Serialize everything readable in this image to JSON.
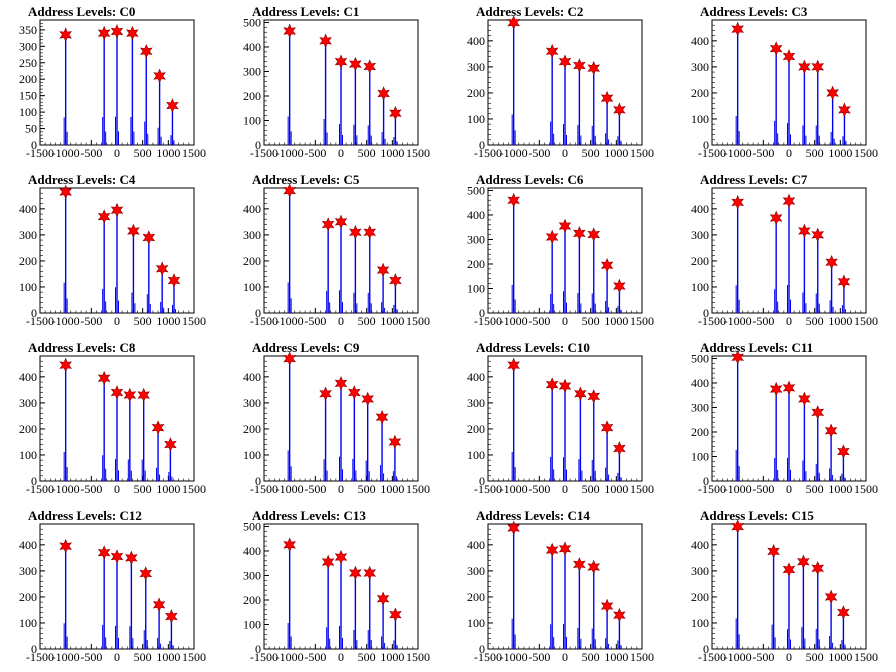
{
  "chart_data": [
    {
      "type": "bar",
      "title": "Address Levels: C0",
      "xlim": [
        -1500,
        1500
      ],
      "ylim": [
        0,
        380
      ],
      "xticks": [
        "-1500",
        "-1000",
        "-500",
        "0",
        "500",
        "1000",
        "1500"
      ],
      "yticks": [
        "0",
        "50",
        "100",
        "150",
        "200",
        "250",
        "300",
        "350"
      ],
      "peaks": [
        {
          "x": -1000,
          "y": 335
        },
        {
          "x": -250,
          "y": 340
        },
        {
          "x": 0,
          "y": 345
        },
        {
          "x": 300,
          "y": 340
        },
        {
          "x": 570,
          "y": 285
        },
        {
          "x": 830,
          "y": 210
        },
        {
          "x": 1080,
          "y": 120
        }
      ]
    },
    {
      "type": "bar",
      "title": "Address Levels: C1",
      "xlim": [
        -1500,
        1500
      ],
      "ylim": [
        0,
        510
      ],
      "xticks": [
        "-1500",
        "-1000",
        "-500",
        "0",
        "500",
        "1000",
        "1500"
      ],
      "yticks": [
        "0",
        "100",
        "200",
        "300",
        "400",
        "500"
      ],
      "peaks": [
        {
          "x": -1000,
          "y": 465
        },
        {
          "x": -300,
          "y": 425
        },
        {
          "x": 0,
          "y": 340
        },
        {
          "x": 280,
          "y": 330
        },
        {
          "x": 560,
          "y": 320
        },
        {
          "x": 830,
          "y": 210
        },
        {
          "x": 1060,
          "y": 130
        }
      ]
    },
    {
      "type": "bar",
      "title": "Address Levels: C2",
      "xlim": [
        -1500,
        1500
      ],
      "ylim": [
        0,
        480
      ],
      "xticks": [
        "-1500",
        "-1000",
        "-500",
        "0",
        "500",
        "1000",
        "1500"
      ],
      "yticks": [
        "0",
        "100",
        "200",
        "300",
        "400"
      ],
      "peaks": [
        {
          "x": -1000,
          "y": 470
        },
        {
          "x": -250,
          "y": 360
        },
        {
          "x": 0,
          "y": 320
        },
        {
          "x": 280,
          "y": 305
        },
        {
          "x": 560,
          "y": 295
        },
        {
          "x": 820,
          "y": 180
        },
        {
          "x": 1060,
          "y": 135
        }
      ]
    },
    {
      "type": "bar",
      "title": "Address Levels: C3",
      "xlim": [
        -1500,
        1500
      ],
      "ylim": [
        0,
        480
      ],
      "xticks": [
        "-1500",
        "-1000",
        "-500",
        "0",
        "500",
        "1000",
        "1500"
      ],
      "yticks": [
        "0",
        "100",
        "200",
        "300",
        "400"
      ],
      "peaks": [
        {
          "x": -1000,
          "y": 445
        },
        {
          "x": -250,
          "y": 370
        },
        {
          "x": 0,
          "y": 340
        },
        {
          "x": 300,
          "y": 300
        },
        {
          "x": 560,
          "y": 300
        },
        {
          "x": 850,
          "y": 200
        },
        {
          "x": 1080,
          "y": 135
        }
      ]
    },
    {
      "type": "bar",
      "title": "Address Levels: C4",
      "xlim": [
        -1500,
        1500
      ],
      "ylim": [
        0,
        480
      ],
      "xticks": [
        "-1500",
        "-1000",
        "-500",
        "0",
        "500",
        "1000",
        "1500"
      ],
      "yticks": [
        "0",
        "100",
        "200",
        "300",
        "400"
      ],
      "peaks": [
        {
          "x": -1000,
          "y": 465
        },
        {
          "x": -250,
          "y": 370
        },
        {
          "x": 0,
          "y": 395
        },
        {
          "x": 320,
          "y": 315
        },
        {
          "x": 620,
          "y": 290
        },
        {
          "x": 880,
          "y": 170
        },
        {
          "x": 1110,
          "y": 125
        }
      ]
    },
    {
      "type": "bar",
      "title": "Address Levels: C5",
      "xlim": [
        -1500,
        1500
      ],
      "ylim": [
        0,
        480
      ],
      "xticks": [
        "-1500",
        "-1000",
        "-500",
        "0",
        "500",
        "1000",
        "1500"
      ],
      "yticks": [
        "0",
        "100",
        "200",
        "300",
        "400"
      ],
      "peaks": [
        {
          "x": -1000,
          "y": 470
        },
        {
          "x": -250,
          "y": 340
        },
        {
          "x": 0,
          "y": 350
        },
        {
          "x": 280,
          "y": 310
        },
        {
          "x": 560,
          "y": 310
        },
        {
          "x": 820,
          "y": 165
        },
        {
          "x": 1060,
          "y": 125
        }
      ]
    },
    {
      "type": "bar",
      "title": "Address Levels: C6",
      "xlim": [
        -1500,
        1500
      ],
      "ylim": [
        0,
        510
      ],
      "xticks": [
        "-1500",
        "-1000",
        "-500",
        "0",
        "500",
        "1000",
        "1500"
      ],
      "yticks": [
        "0",
        "100",
        "200",
        "300",
        "400",
        "500"
      ],
      "peaks": [
        {
          "x": -1000,
          "y": 460
        },
        {
          "x": -250,
          "y": 310
        },
        {
          "x": 0,
          "y": 355
        },
        {
          "x": 280,
          "y": 325
        },
        {
          "x": 560,
          "y": 320
        },
        {
          "x": 820,
          "y": 195
        },
        {
          "x": 1060,
          "y": 110
        }
      ]
    },
    {
      "type": "bar",
      "title": "Address Levels: C7",
      "xlim": [
        -1500,
        1500
      ],
      "ylim": [
        0,
        480
      ],
      "xticks": [
        "-1500",
        "-1000",
        "-500",
        "0",
        "500",
        "1000",
        "1500"
      ],
      "yticks": [
        "0",
        "100",
        "200",
        "300",
        "400"
      ],
      "peaks": [
        {
          "x": -1000,
          "y": 425
        },
        {
          "x": -250,
          "y": 365
        },
        {
          "x": 0,
          "y": 430
        },
        {
          "x": 300,
          "y": 315
        },
        {
          "x": 560,
          "y": 300
        },
        {
          "x": 830,
          "y": 195
        },
        {
          "x": 1070,
          "y": 120
        }
      ]
    },
    {
      "type": "bar",
      "title": "Address Levels: C8",
      "xlim": [
        -1500,
        1500
      ],
      "ylim": [
        0,
        480
      ],
      "xticks": [
        "-1500",
        "-1000",
        "-500",
        "0",
        "500",
        "1000",
        "1500"
      ],
      "yticks": [
        "0",
        "100",
        "200",
        "300",
        "400"
      ],
      "peaks": [
        {
          "x": -1000,
          "y": 445
        },
        {
          "x": -250,
          "y": 395
        },
        {
          "x": 0,
          "y": 340
        },
        {
          "x": 250,
          "y": 330
        },
        {
          "x": 520,
          "y": 330
        },
        {
          "x": 800,
          "y": 205
        },
        {
          "x": 1040,
          "y": 140
        }
      ]
    },
    {
      "type": "bar",
      "title": "Address Levels: C9",
      "xlim": [
        -1500,
        1500
      ],
      "ylim": [
        0,
        480
      ],
      "xticks": [
        "-1500",
        "-1000",
        "-500",
        "0",
        "500",
        "1000",
        "1500"
      ],
      "yticks": [
        "0",
        "100",
        "200",
        "300",
        "400"
      ],
      "peaks": [
        {
          "x": -1000,
          "y": 470
        },
        {
          "x": -300,
          "y": 335
        },
        {
          "x": 0,
          "y": 375
        },
        {
          "x": 260,
          "y": 340
        },
        {
          "x": 520,
          "y": 315
        },
        {
          "x": 800,
          "y": 245
        },
        {
          "x": 1050,
          "y": 150
        }
      ]
    },
    {
      "type": "bar",
      "title": "Address Levels: C10",
      "xlim": [
        -1500,
        1500
      ],
      "ylim": [
        0,
        480
      ],
      "xticks": [
        "-1500",
        "-1000",
        "-500",
        "0",
        "500",
        "1000",
        "1500"
      ],
      "yticks": [
        "0",
        "100",
        "200",
        "300",
        "400"
      ],
      "peaks": [
        {
          "x": -1000,
          "y": 445
        },
        {
          "x": -250,
          "y": 370
        },
        {
          "x": 0,
          "y": 365
        },
        {
          "x": 300,
          "y": 335
        },
        {
          "x": 560,
          "y": 325
        },
        {
          "x": 820,
          "y": 205
        },
        {
          "x": 1060,
          "y": 125
        }
      ]
    },
    {
      "type": "bar",
      "title": "Address Levels: C11",
      "xlim": [
        -1500,
        1500
      ],
      "ylim": [
        0,
        510
      ],
      "xticks": [
        "-1500",
        "-1000",
        "-500",
        "0",
        "500",
        "1000",
        "1500"
      ],
      "yticks": [
        "0",
        "100",
        "200",
        "300",
        "400",
        "500"
      ],
      "peaks": [
        {
          "x": -1000,
          "y": 505
        },
        {
          "x": -250,
          "y": 375
        },
        {
          "x": 0,
          "y": 380
        },
        {
          "x": 300,
          "y": 335
        },
        {
          "x": 560,
          "y": 280
        },
        {
          "x": 820,
          "y": 205
        },
        {
          "x": 1060,
          "y": 120
        }
      ]
    },
    {
      "type": "bar",
      "title": "Address Levels: C12",
      "xlim": [
        -1500,
        1500
      ],
      "ylim": [
        0,
        480
      ],
      "xticks": [
        "-1500",
        "-1000",
        "-500",
        "0",
        "500",
        "1000",
        "1500"
      ],
      "yticks": [
        "0",
        "100",
        "200",
        "300",
        "400"
      ],
      "peaks": [
        {
          "x": -1000,
          "y": 395
        },
        {
          "x": -250,
          "y": 370
        },
        {
          "x": 0,
          "y": 355
        },
        {
          "x": 280,
          "y": 350
        },
        {
          "x": 560,
          "y": 290
        },
        {
          "x": 820,
          "y": 170
        },
        {
          "x": 1060,
          "y": 125
        }
      ]
    },
    {
      "type": "bar",
      "title": "Address Levels: C13",
      "xlim": [
        -1500,
        1500
      ],
      "ylim": [
        0,
        510
      ],
      "xticks": [
        "-1500",
        "-1000",
        "-500",
        "0",
        "500",
        "1000",
        "1500"
      ],
      "yticks": [
        "0",
        "100",
        "200",
        "300",
        "400",
        "500"
      ],
      "peaks": [
        {
          "x": -1000,
          "y": 425
        },
        {
          "x": -250,
          "y": 355
        },
        {
          "x": 0,
          "y": 375
        },
        {
          "x": 280,
          "y": 310
        },
        {
          "x": 560,
          "y": 310
        },
        {
          "x": 820,
          "y": 205
        },
        {
          "x": 1060,
          "y": 140
        }
      ]
    },
    {
      "type": "bar",
      "title": "Address Levels: C14",
      "xlim": [
        -1500,
        1500
      ],
      "ylim": [
        0,
        480
      ],
      "xticks": [
        "-1500",
        "-1000",
        "-500",
        "0",
        "500",
        "1000",
        "1500"
      ],
      "yticks": [
        "0",
        "100",
        "200",
        "300",
        "400"
      ],
      "peaks": [
        {
          "x": -1000,
          "y": 465
        },
        {
          "x": -250,
          "y": 380
        },
        {
          "x": 0,
          "y": 385
        },
        {
          "x": 280,
          "y": 325
        },
        {
          "x": 560,
          "y": 315
        },
        {
          "x": 820,
          "y": 165
        },
        {
          "x": 1060,
          "y": 130
        }
      ]
    },
    {
      "type": "bar",
      "title": "Address Levels: C15",
      "xlim": [
        -1500,
        1500
      ],
      "ylim": [
        0,
        480
      ],
      "xticks": [
        "-1500",
        "-1000",
        "-500",
        "0",
        "500",
        "1000",
        "1500"
      ],
      "yticks": [
        "0",
        "100",
        "200",
        "300",
        "400"
      ],
      "peaks": [
        {
          "x": -1000,
          "y": 470
        },
        {
          "x": -300,
          "y": 375
        },
        {
          "x": 0,
          "y": 305
        },
        {
          "x": 280,
          "y": 335
        },
        {
          "x": 560,
          "y": 310
        },
        {
          "x": 820,
          "y": 200
        },
        {
          "x": 1060,
          "y": 140
        }
      ]
    }
  ],
  "colors": {
    "bar": "#0000ee",
    "marker": "#ff0000",
    "marker_stroke": "#8b0000",
    "axis": "#000000"
  }
}
